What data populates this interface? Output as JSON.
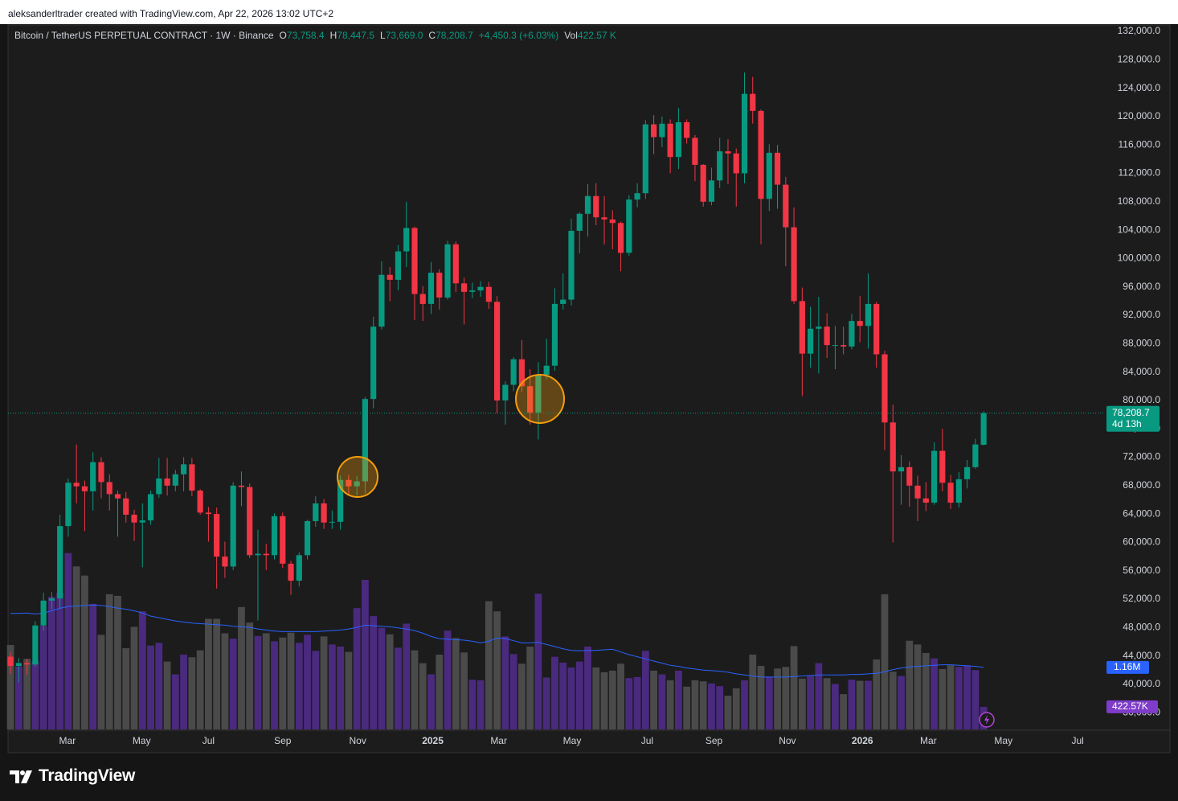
{
  "attribution": "aleksanderltrader created with TradingView.com, Apr 22, 2026 13:02 UTC+2",
  "brand": "TradingView",
  "chart_data": {
    "type": "candlestick",
    "legend": {
      "symbol": "Bitcoin / TetherUS PERPETUAL CONTRACT · 1W · Binance",
      "items": [
        {
          "label": "O",
          "value": "73,758.4"
        },
        {
          "label": "H",
          "value": "78,447.5"
        },
        {
          "label": "L",
          "value": "73,669.0"
        },
        {
          "label": "C",
          "value": "78,208.7"
        }
      ],
      "change": "+4,450.3 (+6.03%)",
      "volume": {
        "label": "Vol",
        "value": "422.57 K"
      }
    },
    "up_color": "#089981",
    "down_color": "#f23645",
    "grid": false,
    "open": [
      43900,
      42600,
      43000,
      42800,
      48300,
      51800,
      52100,
      62300,
      68400,
      67900,
      67200,
      71300,
      68500,
      66800,
      66200,
      63900,
      62800,
      63100,
      66800,
      69000,
      68000,
      69600,
      71000,
      67300,
      64200,
      64000,
      58000,
      56600,
      68000,
      67800,
      58200,
      58400,
      58200,
      63700,
      57000,
      54600,
      58200,
      63000,
      65500,
      62800,
      62900,
      68800,
      67900,
      68600,
      80200,
      90400,
      97700,
      97000,
      101000,
      104300,
      95000,
      93600,
      98000,
      94500,
      102000,
      96500,
      95300,
      95500,
      96000,
      93900,
      80000,
      82200,
      85800,
      82000,
      78300,
      83600,
      84900,
      93600,
      94200,
      103900,
      106300,
      108800,
      105800,
      105500,
      105000,
      100800,
      108300,
      109200,
      118900,
      117100,
      119000,
      114300,
      119200,
      117000,
      113200,
      108000,
      111000,
      115100,
      114800,
      112000,
      123200,
      120800,
      108400,
      114900,
      110400,
      104400,
      94000,
      86600,
      90100,
      90400,
      87800,
      87800,
      87600,
      91200,
      90500,
      93600,
      86500,
      76900,
      70000,
      70600,
      68000,
      66200,
      65600,
      72900,
      68400,
      65600,
      68900,
      70600,
      73758.4
    ],
    "high": [
      44500,
      43700,
      43600,
      48900,
      52900,
      53000,
      63900,
      69000,
      73800,
      68700,
      72700,
      72000,
      69600,
      67300,
      67100,
      64600,
      65500,
      67300,
      71900,
      71900,
      70200,
      72000,
      71900,
      67500,
      65000,
      64900,
      60100,
      68500,
      70000,
      68300,
      61800,
      59800,
      64100,
      64200,
      57400,
      58600,
      63200,
      66500,
      66100,
      64500,
      69400,
      69500,
      69400,
      80500,
      91800,
      99600,
      98800,
      101900,
      108000,
      104500,
      96100,
      99500,
      98500,
      102500,
      102400,
      97300,
      96600,
      96800,
      96700,
      94700,
      82700,
      86100,
      88500,
      84400,
      85400,
      88700,
      95800,
      97900,
      105600,
      106500,
      110500,
      110600,
      108800,
      106800,
      105200,
      108900,
      110600,
      119500,
      120200,
      120000,
      119600,
      121200,
      119600,
      117400,
      113300,
      112800,
      117000,
      116800,
      115500,
      126200,
      125600,
      121000,
      116100,
      116000,
      111500,
      107200,
      95900,
      93200,
      94600,
      92300,
      90500,
      90400,
      92200,
      94700,
      97900,
      93900,
      87000,
      79400,
      72300,
      71400,
      69400,
      68500,
      74100,
      76000,
      69500,
      69900,
      71600,
      74600,
      78447.5
    ],
    "low": [
      41500,
      40300,
      41300,
      42500,
      47600,
      50600,
      50600,
      60800,
      65500,
      61600,
      64500,
      66200,
      64500,
      60800,
      62800,
      60200,
      56500,
      62500,
      66300,
      66600,
      67200,
      67200,
      66500,
      63900,
      60100,
      53500,
      55000,
      56100,
      65100,
      57800,
      49000,
      56100,
      57600,
      56400,
      52600,
      53800,
      57600,
      62200,
      61900,
      61900,
      61800,
      66700,
      66600,
      66900,
      78900,
      90000,
      94000,
      95500,
      98800,
      91300,
      91200,
      92200,
      92800,
      94200,
      95300,
      90700,
      94400,
      94600,
      92900,
      78200,
      76600,
      81300,
      81200,
      76600,
      74500,
      83000,
      84200,
      92800,
      93400,
      100700,
      103100,
      104700,
      102000,
      101300,
      98200,
      100400,
      107200,
      108400,
      114700,
      115700,
      112000,
      112600,
      116200,
      110900,
      107300,
      107500,
      109900,
      110500,
      107300,
      110600,
      119000,
      102000,
      106700,
      107000,
      98900,
      93600,
      80600,
      84600,
      83800,
      86000,
      84400,
      86500,
      87200,
      88200,
      87300,
      84600,
      73000,
      60000,
      65300,
      65000,
      63000,
      64400,
      65300,
      67200,
      64700,
      64900,
      67600,
      70400,
      73669.0
    ],
    "close": [
      42600,
      43000,
      42800,
      48300,
      51800,
      52100,
      62300,
      68400,
      67900,
      67200,
      71300,
      68500,
      66800,
      66200,
      63900,
      62800,
      63100,
      66800,
      69000,
      68000,
      69600,
      71000,
      67300,
      64200,
      64000,
      58000,
      56600,
      68000,
      67800,
      58200,
      58400,
      58200,
      63700,
      57000,
      54600,
      58200,
      63000,
      65500,
      62800,
      62900,
      68800,
      67900,
      68600,
      80200,
      90400,
      97700,
      97000,
      101000,
      104300,
      95000,
      93600,
      98000,
      94500,
      102000,
      96500,
      95300,
      95500,
      96000,
      93900,
      80000,
      82200,
      85800,
      82000,
      78300,
      83600,
      84900,
      93600,
      94200,
      103900,
      106300,
      108800,
      105800,
      105500,
      105000,
      100800,
      108300,
      109200,
      118900,
      117100,
      119000,
      114300,
      119200,
      117000,
      113200,
      108000,
      111000,
      115100,
      114800,
      112000,
      123200,
      120800,
      108400,
      114900,
      110400,
      104400,
      94000,
      86600,
      90100,
      90400,
      87800,
      87800,
      87600,
      91200,
      90500,
      93600,
      86500,
      76900,
      70000,
      70600,
      68000,
      66200,
      65600,
      72900,
      68400,
      65600,
      68900,
      70600,
      73800,
      78208.7
    ],
    "last_price_label": "78,208.7",
    "countdown": "4d 13h",
    "price_line_color": "#089981",
    "volume": {
      "up_color": "#4a2a7e",
      "down_color": "#4a4a4a",
      "ylim": [
        0,
        13200000
      ],
      "values": [
        1580000,
        1180000,
        1320000,
        1280000,
        1940000,
        2480000,
        2560000,
        3300000,
        3050000,
        2880000,
        2350000,
        1770000,
        2530000,
        2500000,
        1520000,
        1920000,
        2210000,
        1570000,
        1620000,
        1270000,
        1030000,
        1400000,
        1350000,
        1480000,
        2070000,
        2070000,
        1800000,
        1700000,
        2290000,
        2000000,
        1750000,
        1800000,
        1650000,
        1720000,
        1810000,
        1620000,
        1770000,
        1470000,
        1740000,
        1590000,
        1550000,
        1450000,
        2270000,
        2800000,
        2120000,
        1900000,
        1780000,
        1530000,
        1980000,
        1480000,
        1240000,
        1030000,
        1400000,
        1850000,
        1710000,
        1440000,
        930000,
        920000,
        2400000,
        2210000,
        1740000,
        1410000,
        1230000,
        1550000,
        2540000,
        970000,
        1360000,
        1250000,
        1160000,
        1270000,
        1550000,
        1160000,
        1070000,
        1100000,
        1230000,
        960000,
        980000,
        1470000,
        1100000,
        1030000,
        920000,
        1100000,
        800000,
        920000,
        900000,
        860000,
        810000,
        630000,
        770000,
        920000,
        1400000,
        1190000,
        990000,
        1140000,
        1170000,
        1560000,
        950000,
        1000000,
        1240000,
        960000,
        850000,
        660000,
        930000,
        910000,
        910000,
        1310000,
        2530000,
        1080000,
        1000000,
        1660000,
        1590000,
        1430000,
        1330000,
        1130000,
        1200000,
        1170000,
        1200000,
        1110000,
        422570
      ],
      "last_value_label": "422.57K",
      "label_color": "#7e3cc9",
      "ma": {
        "color": "#2962ff",
        "last_value_label": "1.16M",
        "values": [
          2170000,
          2170000,
          2180000,
          2160000,
          2180000,
          2220000,
          2270000,
          2300000,
          2310000,
          2320000,
          2330000,
          2320000,
          2300000,
          2270000,
          2250000,
          2220000,
          2180000,
          2120000,
          2090000,
          2060000,
          2030000,
          2010000,
          1990000,
          1980000,
          1970000,
          1960000,
          1950000,
          1930000,
          1920000,
          1910000,
          1880000,
          1860000,
          1840000,
          1830000,
          1830000,
          1830000,
          1830000,
          1830000,
          1840000,
          1850000,
          1860000,
          1880000,
          1910000,
          1950000,
          1940000,
          1930000,
          1920000,
          1900000,
          1880000,
          1850000,
          1800000,
          1740000,
          1700000,
          1690000,
          1680000,
          1670000,
          1650000,
          1620000,
          1650000,
          1710000,
          1700000,
          1660000,
          1620000,
          1620000,
          1630000,
          1590000,
          1550000,
          1510000,
          1480000,
          1470000,
          1480000,
          1480000,
          1490000,
          1500000,
          1450000,
          1400000,
          1360000,
          1320000,
          1280000,
          1240000,
          1200000,
          1180000,
          1150000,
          1130000,
          1110000,
          1100000,
          1090000,
          1070000,
          1040000,
          1020000,
          1000000,
          980000,
          980000,
          980000,
          980000,
          990000,
          1000000,
          1010000,
          1020000,
          1020000,
          1020000,
          1020000,
          1030000,
          1030000,
          1040000,
          1050000,
          1080000,
          1120000,
          1150000,
          1170000,
          1180000,
          1190000,
          1200000,
          1210000,
          1210000,
          1200000,
          1190000,
          1180000,
          1160000
        ]
      }
    },
    "ylim": [
      33650,
      133020
    ],
    "yticks": [
      {
        "value": 132000,
        "label": "132,000.0"
      },
      {
        "value": 128000,
        "label": "128,000.0"
      },
      {
        "value": 124000,
        "label": "124,000.0"
      },
      {
        "value": 120000,
        "label": "120,000.0"
      },
      {
        "value": 116000,
        "label": "116,000.0"
      },
      {
        "value": 112000,
        "label": "112,000.0"
      },
      {
        "value": 108000,
        "label": "108,000.0"
      },
      {
        "value": 104000,
        "label": "104,000.0"
      },
      {
        "value": 100000,
        "label": "100,000.0"
      },
      {
        "value": 96000,
        "label": "96,000.0"
      },
      {
        "value": 92000,
        "label": "92,000.0"
      },
      {
        "value": 88000,
        "label": "88,000.0"
      },
      {
        "value": 84000,
        "label": "84,000.0"
      },
      {
        "value": 80000,
        "label": "80,000.0"
      },
      {
        "value": 76000,
        "label": "76,000.0"
      },
      {
        "value": 72000,
        "label": "72,000.0"
      },
      {
        "value": 68000,
        "label": "68,000.0"
      },
      {
        "value": 64000,
        "label": "64,000.0"
      },
      {
        "value": 60000,
        "label": "60,000.0"
      },
      {
        "value": 56000,
        "label": "56,000.0"
      },
      {
        "value": 52000,
        "label": "52,000.0"
      },
      {
        "value": 48000,
        "label": "48,000.0"
      },
      {
        "value": 44000,
        "label": "44,000.0"
      },
      {
        "value": 40000,
        "label": "40,000.0"
      },
      {
        "value": 36000,
        "label": "36,000.0"
      }
    ],
    "xlim": [
      -0.3,
      132.7
    ],
    "xticks": [
      {
        "value": 6.9,
        "label": "Mar"
      },
      {
        "value": 15.9,
        "label": "May"
      },
      {
        "value": 24.0,
        "label": "Jul"
      },
      {
        "value": 33.0,
        "label": "Sep"
      },
      {
        "value": 42.1,
        "label": "Nov"
      },
      {
        "value": 51.2,
        "label": "2025"
      },
      {
        "value": 59.2,
        "label": "Mar"
      },
      {
        "value": 68.1,
        "label": "May"
      },
      {
        "value": 77.2,
        "label": "Jul"
      },
      {
        "value": 85.3,
        "label": "Sep"
      },
      {
        "value": 94.2,
        "label": "Nov"
      },
      {
        "value": 103.3,
        "label": "2026"
      },
      {
        "value": 111.3,
        "label": "Mar"
      },
      {
        "value": 120.4,
        "label": "May"
      },
      {
        "value": 129.4,
        "label": "Jul"
      }
    ]
  }
}
